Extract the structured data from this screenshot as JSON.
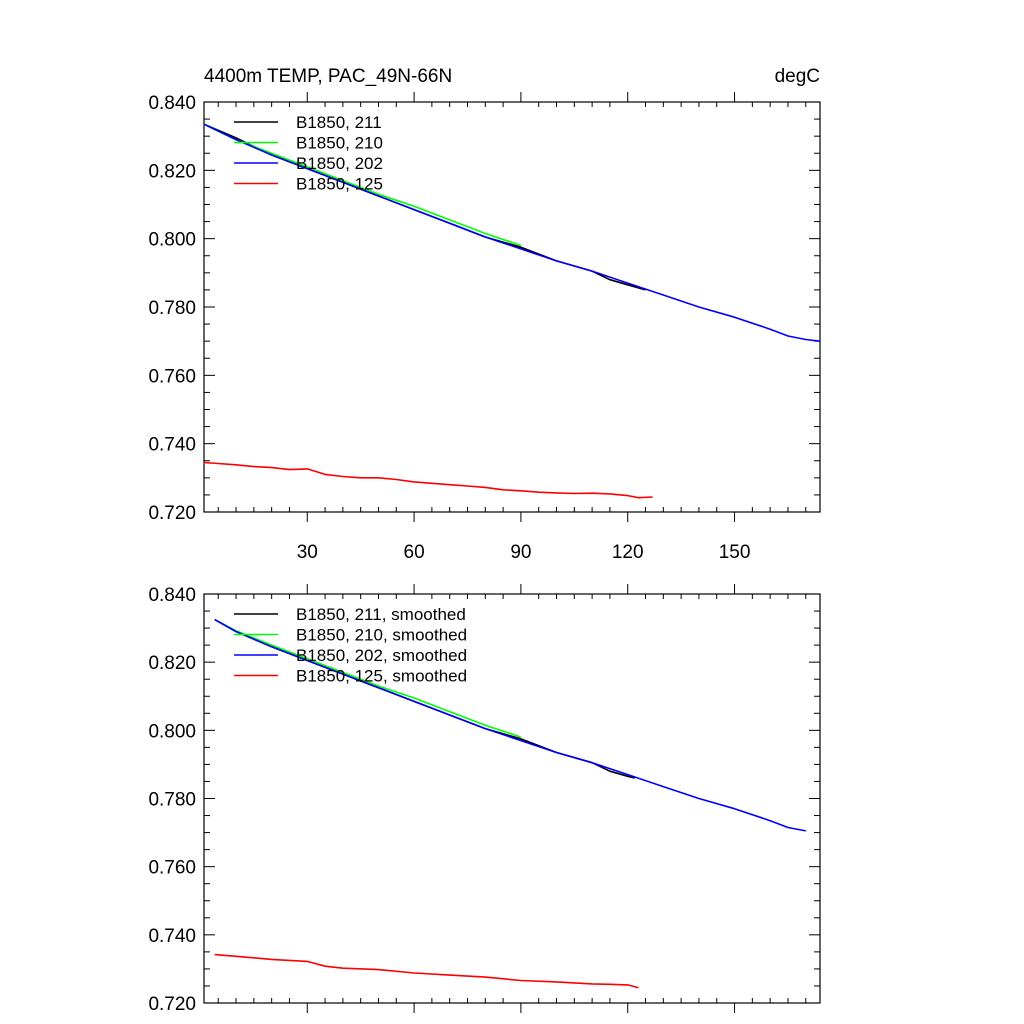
{
  "chart_data": [
    {
      "type": "line",
      "title": "4400m TEMP, PAC_49N-66N",
      "units": "degC",
      "xlabel": "",
      "ylabel": "",
      "xlim": [
        1,
        174
      ],
      "ylim": [
        0.72,
        0.84
      ],
      "yticks": [
        "0.720",
        "0.740",
        "0.760",
        "0.780",
        "0.800",
        "0.820",
        "0.840"
      ],
      "xticks": [
        "30",
        "60",
        "90",
        "120",
        "150"
      ],
      "grid": false,
      "legend_position": "top-left",
      "series": [
        {
          "name": "B1850, 211",
          "color": "#000000",
          "x": [
            1,
            10,
            20,
            30,
            40,
            50,
            60,
            70,
            80,
            90,
            100,
            110,
            115,
            120,
            125
          ],
          "y": [
            0.8335,
            0.8295,
            0.8245,
            0.8205,
            0.8165,
            0.8125,
            0.8085,
            0.8045,
            0.8005,
            0.7975,
            0.7935,
            0.7905,
            0.788,
            0.7865,
            0.785
          ]
        },
        {
          "name": "B1850, 210",
          "color": "#00ff00",
          "x": [
            1,
            10,
            20,
            30,
            40,
            50,
            60,
            70,
            80,
            90
          ],
          "y": [
            0.8335,
            0.829,
            0.825,
            0.821,
            0.817,
            0.813,
            0.8095,
            0.8055,
            0.8015,
            0.798
          ]
        },
        {
          "name": "B1850, 202",
          "color": "#0000ff",
          "x": [
            1,
            10,
            20,
            30,
            40,
            50,
            60,
            70,
            80,
            90,
            100,
            110,
            120,
            130,
            140,
            150,
            160,
            165,
            170,
            174
          ],
          "y": [
            0.8335,
            0.829,
            0.8245,
            0.8205,
            0.8165,
            0.8125,
            0.8085,
            0.8045,
            0.8005,
            0.797,
            0.7935,
            0.7905,
            0.787,
            0.7835,
            0.78,
            0.777,
            0.7735,
            0.7715,
            0.7705,
            0.77
          ]
        },
        {
          "name": "B1850, 125",
          "color": "#ff0000",
          "x": [
            1,
            5,
            10,
            15,
            20,
            25,
            30,
            35,
            40,
            45,
            50,
            55,
            60,
            65,
            70,
            75,
            80,
            85,
            90,
            95,
            100,
            105,
            110,
            115,
            120,
            123,
            127
          ],
          "y": [
            0.7345,
            0.7342,
            0.7338,
            0.7333,
            0.733,
            0.7324,
            0.7326,
            0.731,
            0.7304,
            0.73,
            0.73,
            0.7295,
            0.7288,
            0.7284,
            0.728,
            0.7276,
            0.7272,
            0.7265,
            0.7262,
            0.7258,
            0.7256,
            0.7254,
            0.7255,
            0.7253,
            0.7248,
            0.7242,
            0.7244
          ]
        }
      ]
    },
    {
      "type": "line",
      "title": "",
      "xlabel": "",
      "ylabel": "",
      "xlim": [
        1,
        174
      ],
      "ylim": [
        0.72,
        0.84
      ],
      "yticks": [
        "0.720",
        "0.740",
        "0.760",
        "0.780",
        "0.800",
        "0.820",
        "0.840"
      ],
      "grid": false,
      "legend_position": "top-left",
      "series": [
        {
          "name": "B1850, 211, smoothed",
          "color": "#000000",
          "x": [
            4,
            10,
            20,
            30,
            40,
            50,
            60,
            70,
            80,
            90,
            100,
            110,
            115,
            120,
            122
          ],
          "y": [
            0.8325,
            0.829,
            0.8245,
            0.8205,
            0.8165,
            0.8125,
            0.8085,
            0.8045,
            0.8005,
            0.7975,
            0.7935,
            0.7905,
            0.788,
            0.7865,
            0.786
          ]
        },
        {
          "name": "B1850, 210, smoothed",
          "color": "#00ff00",
          "x": [
            4,
            10,
            20,
            30,
            40,
            50,
            60,
            70,
            80,
            90
          ],
          "y": [
            0.8325,
            0.8292,
            0.825,
            0.821,
            0.817,
            0.813,
            0.8095,
            0.8055,
            0.8015,
            0.798
          ]
        },
        {
          "name": "B1850, 202, smoothed",
          "color": "#0000ff",
          "x": [
            4,
            10,
            20,
            30,
            40,
            50,
            60,
            70,
            80,
            90,
            100,
            110,
            120,
            130,
            140,
            150,
            160,
            165,
            170
          ],
          "y": [
            0.8325,
            0.829,
            0.8245,
            0.8205,
            0.8165,
            0.8125,
            0.8085,
            0.8045,
            0.8005,
            0.797,
            0.7935,
            0.7905,
            0.787,
            0.7835,
            0.78,
            0.777,
            0.7735,
            0.7715,
            0.7705
          ]
        },
        {
          "name": "B1850, 125, smoothed",
          "color": "#ff0000",
          "x": [
            4,
            10,
            20,
            30,
            35,
            40,
            50,
            60,
            70,
            80,
            90,
            100,
            110,
            115,
            120,
            123
          ],
          "y": [
            0.7342,
            0.7337,
            0.7328,
            0.7322,
            0.7308,
            0.7302,
            0.7298,
            0.7288,
            0.7282,
            0.7276,
            0.7266,
            0.7262,
            0.7256,
            0.7255,
            0.7253,
            0.7245
          ]
        }
      ]
    }
  ]
}
